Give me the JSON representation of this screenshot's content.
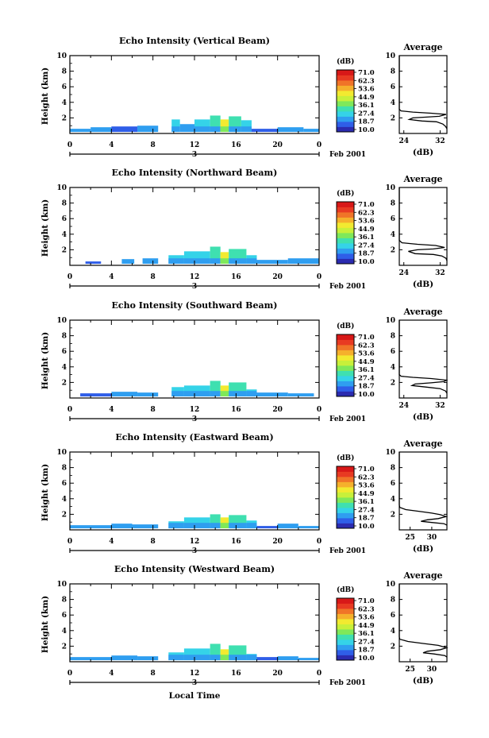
{
  "colorbar": {
    "unit": "(dB)",
    "ticks": [
      "71.0",
      "62.3",
      "53.6",
      "44.9",
      "36.1",
      "27.4",
      "18.7",
      "10.0"
    ],
    "colors": [
      "#2b2bb0",
      "#2f5ee8",
      "#2f9ef0",
      "#35d3e8",
      "#3fe0b0",
      "#7fe85a",
      "#c8f03a",
      "#f2ea30",
      "#f5b02c",
      "#f07428",
      "#e83a22",
      "#d81818"
    ]
  },
  "x_ticks": [
    "0",
    "4",
    "8",
    "12",
    "16",
    "20",
    "0"
  ],
  "date_day": "3",
  "date_label": "Feb 2001",
  "footer_xlabel": "Local Time",
  "chart_data": [
    {
      "type": "heatmap",
      "title": "Echo Intensity (Vertical Beam)",
      "ylabel": "Height (km)",
      "xlim": [
        0,
        24
      ],
      "ylim": [
        0,
        10
      ],
      "yticks": [
        "10",
        "8",
        "6",
        "4",
        "2"
      ],
      "profile": {
        "title": "Average",
        "xlabel": "(dB)",
        "xticks": [
          "24",
          "32"
        ],
        "xlim": [
          23,
          33.5
        ],
        "ylim": [
          0,
          10
        ],
        "points": [
          [
            33.5,
            0.6
          ],
          [
            33.2,
            0.9
          ],
          [
            32.6,
            1.2
          ],
          [
            31.2,
            1.5
          ],
          [
            28,
            1.6
          ],
          [
            25.2,
            1.8
          ],
          [
            26,
            2.0
          ],
          [
            29,
            2.1
          ],
          [
            31.8,
            2.2
          ],
          [
            33.3,
            2.45
          ],
          [
            30,
            2.6
          ],
          [
            26,
            2.75
          ],
          [
            23.4,
            2.9
          ],
          [
            23,
            3.1
          ],
          [
            23,
            10
          ]
        ]
      },
      "echo": [
        {
          "x0": 0.0,
          "x1": 2.0,
          "top": 0.6,
          "level": 2
        },
        {
          "x0": 2.0,
          "x1": 4.0,
          "top": 0.8,
          "level": 2
        },
        {
          "x0": 4.0,
          "x1": 6.5,
          "top": 0.9,
          "level": 1
        },
        {
          "x0": 6.5,
          "x1": 8.5,
          "top": 1.0,
          "level": 2
        },
        {
          "x0": 9.8,
          "x1": 10.6,
          "top": 1.8,
          "level": 3
        },
        {
          "x0": 10.6,
          "x1": 12.0,
          "top": 1.2,
          "level": 2
        },
        {
          "x0": 12.0,
          "x1": 13.5,
          "top": 1.8,
          "level": 3
        },
        {
          "x0": 13.5,
          "x1": 14.5,
          "top": 2.3,
          "level": 4
        },
        {
          "x0": 14.5,
          "x1": 15.3,
          "top": 1.8,
          "level": 7
        },
        {
          "x0": 15.3,
          "x1": 16.5,
          "top": 2.2,
          "level": 4
        },
        {
          "x0": 16.5,
          "x1": 17.5,
          "top": 1.7,
          "level": 3
        },
        {
          "x0": 17.5,
          "x1": 20.0,
          "top": 0.6,
          "level": 1
        },
        {
          "x0": 20.0,
          "x1": 22.5,
          "top": 0.8,
          "level": 2
        },
        {
          "x0": 22.5,
          "x1": 24.0,
          "top": 0.6,
          "level": 2
        }
      ]
    },
    {
      "type": "heatmap",
      "title": "Echo Intensity (Northward Beam)",
      "ylabel": "Height (km)",
      "xlim": [
        0,
        24
      ],
      "ylim": [
        0,
        10
      ],
      "yticks": [
        "10",
        "8",
        "6",
        "4",
        "2"
      ],
      "profile": {
        "title": "Average",
        "xlabel": "(dB)",
        "xticks": [
          "24",
          "32"
        ],
        "xlim": [
          23,
          33.5
        ],
        "ylim": [
          0,
          10
        ],
        "points": [
          [
            33.5,
            0.6
          ],
          [
            33.3,
            0.9
          ],
          [
            32.4,
            1.2
          ],
          [
            30.5,
            1.4
          ],
          [
            26.5,
            1.5
          ],
          [
            25,
            1.8
          ],
          [
            27,
            2.0
          ],
          [
            30.5,
            2.1
          ],
          [
            33,
            2.3
          ],
          [
            31,
            2.55
          ],
          [
            27,
            2.7
          ],
          [
            23.6,
            2.9
          ],
          [
            23,
            3.2
          ],
          [
            23,
            10
          ]
        ]
      },
      "echo": [
        {
          "x0": 1.5,
          "x1": 3.0,
          "top": 0.5,
          "level": 1
        },
        {
          "x0": 5.0,
          "x1": 6.2,
          "top": 0.8,
          "level": 2
        },
        {
          "x0": 7.0,
          "x1": 8.5,
          "top": 0.9,
          "level": 2
        },
        {
          "x0": 9.5,
          "x1": 11.0,
          "top": 1.3,
          "level": 3
        },
        {
          "x0": 11.0,
          "x1": 13.5,
          "top": 1.8,
          "level": 3
        },
        {
          "x0": 13.5,
          "x1": 14.5,
          "top": 2.4,
          "level": 4
        },
        {
          "x0": 14.5,
          "x1": 15.3,
          "top": 1.7,
          "level": 7
        },
        {
          "x0": 15.3,
          "x1": 17.0,
          "top": 2.1,
          "level": 4
        },
        {
          "x0": 17.0,
          "x1": 18.0,
          "top": 1.3,
          "level": 3
        },
        {
          "x0": 18.0,
          "x1": 21.0,
          "top": 0.7,
          "level": 2
        },
        {
          "x0": 21.0,
          "x1": 24.0,
          "top": 0.9,
          "level": 2
        }
      ]
    },
    {
      "type": "heatmap",
      "title": "Echo Intensity (Southward Beam)",
      "ylabel": "Height (km)",
      "xlim": [
        0,
        24
      ],
      "ylim": [
        0,
        10
      ],
      "yticks": [
        "10",
        "8",
        "6",
        "4",
        "2"
      ],
      "profile": {
        "title": "Average",
        "xlabel": "(dB)",
        "xticks": [
          "24",
          "32"
        ],
        "xlim": [
          23,
          33.5
        ],
        "ylim": [
          0,
          10
        ],
        "points": [
          [
            33.5,
            0.6
          ],
          [
            33.2,
            0.9
          ],
          [
            32,
            1.2
          ],
          [
            29,
            1.4
          ],
          [
            25.8,
            1.6
          ],
          [
            26.5,
            1.8
          ],
          [
            30,
            1.95
          ],
          [
            32.8,
            2.1
          ],
          [
            33.4,
            2.3
          ],
          [
            30,
            2.5
          ],
          [
            26,
            2.65
          ],
          [
            23.4,
            2.8
          ],
          [
            23,
            3.0
          ],
          [
            23,
            10
          ]
        ]
      },
      "echo": [
        {
          "x0": 1.0,
          "x1": 4.0,
          "top": 0.6,
          "level": 1
        },
        {
          "x0": 4.0,
          "x1": 6.5,
          "top": 0.8,
          "level": 2
        },
        {
          "x0": 6.5,
          "x1": 8.5,
          "top": 0.7,
          "level": 2
        },
        {
          "x0": 9.8,
          "x1": 11.0,
          "top": 1.4,
          "level": 3
        },
        {
          "x0": 11.0,
          "x1": 13.5,
          "top": 1.6,
          "level": 3
        },
        {
          "x0": 13.5,
          "x1": 14.5,
          "top": 2.2,
          "level": 4
        },
        {
          "x0": 14.5,
          "x1": 15.3,
          "top": 1.6,
          "level": 7
        },
        {
          "x0": 15.3,
          "x1": 17.0,
          "top": 2.0,
          "level": 4
        },
        {
          "x0": 17.0,
          "x1": 18.0,
          "top": 1.1,
          "level": 3
        },
        {
          "x0": 18.0,
          "x1": 21.0,
          "top": 0.7,
          "level": 2
        },
        {
          "x0": 21.0,
          "x1": 23.5,
          "top": 0.6,
          "level": 2
        }
      ]
    },
    {
      "type": "heatmap",
      "title": "Echo Intensity (Eastward Beam)",
      "ylabel": "Height (km)",
      "xlim": [
        0,
        24
      ],
      "ylim": [
        0,
        10
      ],
      "yticks": [
        "10",
        "8",
        "6",
        "4",
        "2"
      ],
      "profile": {
        "title": "Average",
        "xlabel": "(dB)",
        "xticks": [
          "25",
          "30"
        ],
        "xlim": [
          22.5,
          33.5
        ],
        "ylim": [
          0,
          10
        ],
        "points": [
          [
            33.5,
            0.6
          ],
          [
            32.8,
            0.8
          ],
          [
            30,
            0.95
          ],
          [
            27.5,
            1.1
          ],
          [
            29,
            1.3
          ],
          [
            31.5,
            1.45
          ],
          [
            33.3,
            1.7
          ],
          [
            32,
            1.95
          ],
          [
            30,
            2.15
          ],
          [
            27.5,
            2.35
          ],
          [
            24,
            2.6
          ],
          [
            22.6,
            2.9
          ],
          [
            22.5,
            3.2
          ],
          [
            22.5,
            10
          ]
        ]
      },
      "echo": [
        {
          "x0": 0.0,
          "x1": 4.0,
          "top": 0.6,
          "level": 2
        },
        {
          "x0": 4.0,
          "x1": 6.0,
          "top": 0.8,
          "level": 2
        },
        {
          "x0": 6.0,
          "x1": 8.5,
          "top": 0.7,
          "level": 2
        },
        {
          "x0": 9.5,
          "x1": 11.0,
          "top": 1.1,
          "level": 3
        },
        {
          "x0": 11.0,
          "x1": 13.5,
          "top": 1.6,
          "level": 3
        },
        {
          "x0": 13.5,
          "x1": 14.5,
          "top": 2.0,
          "level": 4
        },
        {
          "x0": 14.5,
          "x1": 15.3,
          "top": 1.6,
          "level": 7
        },
        {
          "x0": 15.3,
          "x1": 17.0,
          "top": 1.9,
          "level": 4
        },
        {
          "x0": 17.0,
          "x1": 18.0,
          "top": 1.2,
          "level": 3
        },
        {
          "x0": 18.0,
          "x1": 20.0,
          "top": 0.5,
          "level": 1
        },
        {
          "x0": 20.0,
          "x1": 22.0,
          "top": 0.8,
          "level": 2
        },
        {
          "x0": 22.0,
          "x1": 24.0,
          "top": 0.5,
          "level": 2
        }
      ]
    },
    {
      "type": "heatmap",
      "title": "Echo Intensity (Westward Beam)",
      "ylabel": "Height (km)",
      "xlim": [
        0,
        24
      ],
      "ylim": [
        0,
        10
      ],
      "yticks": [
        "10",
        "8",
        "6",
        "4",
        "2"
      ],
      "profile": {
        "title": "Average",
        "xlabel": "(dB)",
        "xticks": [
          "25",
          "30"
        ],
        "xlim": [
          22.5,
          33.5
        ],
        "ylim": [
          0,
          10
        ],
        "points": [
          [
            33.5,
            0.6
          ],
          [
            33,
            0.8
          ],
          [
            30.5,
            1.0
          ],
          [
            28,
            1.15
          ],
          [
            29,
            1.35
          ],
          [
            32,
            1.55
          ],
          [
            33.4,
            1.8
          ],
          [
            31.5,
            2.1
          ],
          [
            28,
            2.35
          ],
          [
            24.5,
            2.6
          ],
          [
            22.6,
            2.9
          ],
          [
            22.5,
            3.2
          ],
          [
            22.5,
            10
          ]
        ]
      },
      "echo": [
        {
          "x0": 0.0,
          "x1": 4.0,
          "top": 0.6,
          "level": 2
        },
        {
          "x0": 4.0,
          "x1": 6.5,
          "top": 0.8,
          "level": 2
        },
        {
          "x0": 6.5,
          "x1": 8.5,
          "top": 0.7,
          "level": 2
        },
        {
          "x0": 9.5,
          "x1": 11.0,
          "top": 1.2,
          "level": 3
        },
        {
          "x0": 11.0,
          "x1": 13.5,
          "top": 1.7,
          "level": 3
        },
        {
          "x0": 13.5,
          "x1": 14.5,
          "top": 2.3,
          "level": 4
        },
        {
          "x0": 14.5,
          "x1": 15.3,
          "top": 1.6,
          "level": 7
        },
        {
          "x0": 15.3,
          "x1": 17.0,
          "top": 2.1,
          "level": 4
        },
        {
          "x0": 17.0,
          "x1": 18.0,
          "top": 1.0,
          "level": 3
        },
        {
          "x0": 18.0,
          "x1": 20.0,
          "top": 0.6,
          "level": 1
        },
        {
          "x0": 20.0,
          "x1": 22.0,
          "top": 0.7,
          "level": 2
        },
        {
          "x0": 22.0,
          "x1": 24.0,
          "top": 0.5,
          "level": 2
        }
      ]
    }
  ]
}
